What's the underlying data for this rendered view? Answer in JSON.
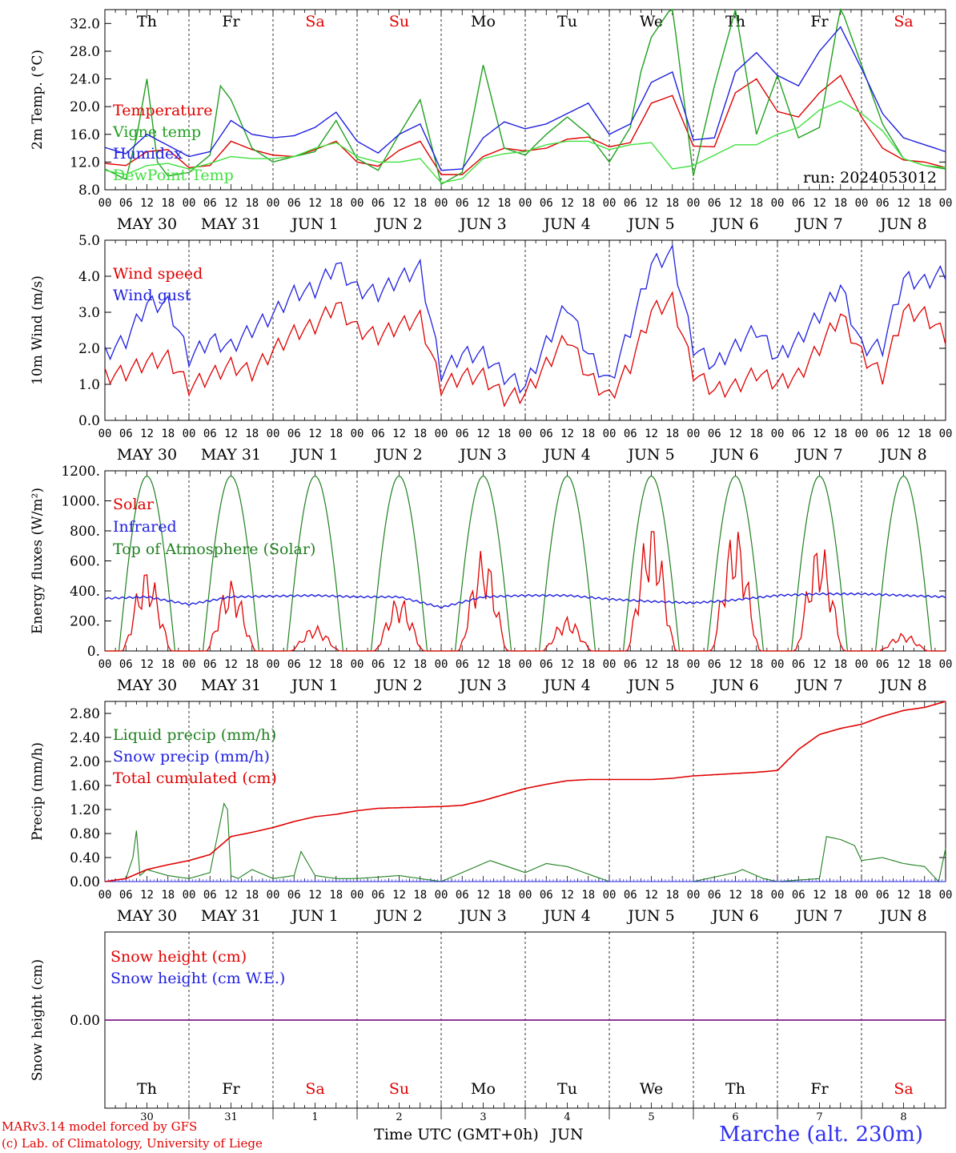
{
  "run_label": "run: 2024053012",
  "days": {
    "weekday_labels": [
      "Th",
      "Fr",
      "Sa",
      "Su",
      "Mo",
      "Tu",
      "We",
      "Th",
      "Fr",
      "Sa"
    ],
    "weekend_color": "#e00000",
    "weekday_color": "#000000",
    "date_labels": [
      "MAY 30",
      "MAY 31",
      "JUN  1",
      "JUN  2",
      "JUN  3",
      "JUN  4",
      "JUN  5",
      "JUN  6",
      "JUN  7",
      "JUN  8"
    ],
    "hour_labels": [
      "00",
      "06",
      "12",
      "18"
    ],
    "final_hour_label": "00",
    "bottom_day_numbers": [
      "30",
      "31",
      "1",
      "2",
      "3",
      "4",
      "5",
      "6",
      "7",
      "8"
    ],
    "bottom_month": "JUN"
  },
  "footer": {
    "credit_line1": "MARv3.14 model forced by GFS",
    "credit_line2": "(c) Lab. of Climatology, University of Liege",
    "time_axis_label": "Time UTC (GMT+0h)",
    "station": "Marche (alt. 230m)"
  },
  "chart_data": [
    {
      "type": "line",
      "ylabel": "2m Temp. (°C)",
      "ylim": [
        8,
        34
      ],
      "yticks": [
        "8.0",
        "12.0",
        "16.0",
        "20.0",
        "24.0",
        "28.0",
        "32.0"
      ],
      "x_unit": "hours since 2024-05-30 00 UTC",
      "series": [
        {
          "name": "Temperature",
          "color": "#e00000",
          "x": [
            0,
            6,
            12,
            18,
            24,
            30,
            36,
            42,
            48,
            54,
            60,
            66,
            72,
            78,
            84,
            90,
            96,
            102,
            108,
            114,
            120,
            126,
            132,
            138,
            144,
            150,
            156,
            162,
            168,
            174,
            180,
            186,
            192,
            198,
            204,
            210,
            216,
            222,
            228,
            234,
            240
          ],
          "values": [
            11.8,
            11.5,
            13.5,
            13.8,
            11.2,
            11.5,
            15.0,
            13.8,
            13.0,
            12.8,
            13.8,
            15.0,
            12.0,
            11.4,
            13.7,
            15.0,
            10.2,
            10.2,
            12.8,
            14.0,
            13.6,
            14.0,
            15.3,
            15.6,
            14.2,
            14.8,
            20.5,
            21.6,
            14.3,
            14.2,
            22.0,
            24.0,
            19.3,
            18.5,
            22.0,
            24.5,
            18.5,
            14.0,
            12.3,
            12.0,
            11.2
          ]
        },
        {
          "name": "Vigne temp",
          "color": "#20a020",
          "x": [
            0,
            6,
            9,
            12,
            15,
            18,
            24,
            30,
            33,
            36,
            42,
            48,
            54,
            60,
            66,
            72,
            78,
            84,
            90,
            96,
            102,
            108,
            114,
            120,
            126,
            132,
            138,
            144,
            150,
            153,
            156,
            162,
            168,
            174,
            180,
            186,
            192,
            198,
            204,
            210,
            216,
            222,
            228,
            234,
            240
          ],
          "values": [
            11.0,
            9.5,
            15.5,
            24.0,
            12.0,
            10.0,
            10.5,
            13.0,
            23.0,
            21.0,
            14.0,
            12.0,
            12.8,
            13.5,
            18.0,
            12.5,
            10.8,
            16.0,
            21.0,
            8.8,
            10.5,
            26.0,
            14.0,
            13.0,
            16.0,
            18.5,
            16.0,
            12.0,
            17.0,
            25.0,
            30.0,
            34.5,
            10.0,
            23.0,
            34.0,
            16.0,
            24.5,
            15.5,
            17.0,
            34.5,
            26.0,
            17.5,
            12.5,
            11.5,
            11.0
          ]
        },
        {
          "name": "Humidex",
          "color": "#2020e0",
          "x": [
            0,
            6,
            12,
            18,
            24,
            30,
            36,
            42,
            48,
            54,
            60,
            66,
            72,
            78,
            84,
            90,
            96,
            102,
            108,
            114,
            120,
            126,
            132,
            138,
            144,
            150,
            156,
            162,
            168,
            174,
            180,
            186,
            192,
            198,
            204,
            210,
            216,
            222,
            228,
            234,
            240
          ],
          "values": [
            14.1,
            13.2,
            16.0,
            14.4,
            12.8,
            13.5,
            18.0,
            16.0,
            15.5,
            15.8,
            17.0,
            19.2,
            15.0,
            13.3,
            16.0,
            17.5,
            10.8,
            11.0,
            15.5,
            17.8,
            16.8,
            17.5,
            19.0,
            20.5,
            16.0,
            17.5,
            23.5,
            25.0,
            15.2,
            15.5,
            25.0,
            27.8,
            24.5,
            23.0,
            28.0,
            31.5,
            25.5,
            19.0,
            15.5,
            14.5,
            13.5
          ]
        },
        {
          "name": "DewPoint Temp",
          "color": "#40e040",
          "x": [
            0,
            6,
            12,
            18,
            24,
            30,
            36,
            42,
            48,
            54,
            60,
            66,
            72,
            78,
            84,
            90,
            96,
            102,
            108,
            114,
            120,
            126,
            132,
            138,
            144,
            150,
            156,
            162,
            168,
            174,
            180,
            186,
            192,
            198,
            204,
            210,
            216,
            222,
            228,
            234,
            240
          ],
          "values": [
            10.8,
            10.2,
            11.5,
            11.8,
            11.0,
            11.8,
            12.8,
            12.5,
            12.5,
            12.8,
            14.0,
            14.8,
            12.8,
            12.0,
            12.0,
            12.5,
            9.0,
            9.6,
            12.5,
            13.2,
            13.5,
            14.5,
            15.0,
            15.0,
            13.8,
            14.5,
            14.8,
            11.0,
            11.5,
            13.0,
            14.5,
            14.5,
            16.0,
            17.0,
            19.5,
            20.8,
            19.0,
            16.5,
            12.5,
            11.5,
            11.2
          ]
        }
      ]
    },
    {
      "type": "line",
      "ylabel": "10m Wind (m/s)",
      "ylim": [
        0,
        5
      ],
      "yticks": [
        "0.0",
        "1.0",
        "2.0",
        "3.0",
        "4.0",
        "5.0"
      ],
      "series": [
        {
          "name": "Wind speed",
          "color": "#e00000",
          "x": [
            0,
            6,
            12,
            18,
            24,
            30,
            36,
            42,
            48,
            54,
            60,
            66,
            72,
            78,
            84,
            90,
            96,
            102,
            108,
            114,
            120,
            126,
            132,
            138,
            144,
            150,
            156,
            162,
            168,
            174,
            180,
            186,
            192,
            198,
            204,
            210,
            216,
            222,
            228,
            234,
            240
          ],
          "values": [
            1.2,
            1.3,
            1.6,
            1.7,
            0.9,
            1.2,
            1.5,
            1.3,
            1.9,
            2.4,
            2.6,
            3.2,
            2.5,
            2.3,
            2.6,
            2.8,
            0.9,
            1.2,
            1.2,
            0.6,
            0.7,
            1.5,
            2.3,
            1.2,
            0.6,
            1.5,
            3.0,
            3.3,
            1.3,
            0.8,
            0.9,
            1.3,
            1.0,
            1.2,
            2.0,
            2.9,
            1.8,
            1.2,
            3.0,
            2.9,
            2.3
          ]
        },
        {
          "name": "Wind gust",
          "color": "#2020e0",
          "x": [
            0,
            6,
            12,
            18,
            24,
            30,
            36,
            42,
            48,
            54,
            60,
            66,
            72,
            78,
            84,
            90,
            96,
            102,
            108,
            114,
            120,
            126,
            132,
            138,
            144,
            150,
            156,
            162,
            168,
            174,
            180,
            186,
            192,
            198,
            204,
            210,
            216,
            222,
            228,
            234,
            240
          ],
          "values": [
            1.8,
            2.2,
            3.2,
            3.2,
            1.7,
            2.2,
            2.0,
            2.5,
            2.9,
            3.5,
            3.6,
            4.3,
            3.6,
            3.5,
            3.9,
            4.2,
            1.3,
            1.8,
            1.8,
            1.2,
            0.9,
            2.1,
            3.2,
            1.8,
            1.0,
            2.5,
            4.3,
            4.6,
            2.0,
            1.5,
            2.0,
            2.5,
            1.7,
            2.2,
            2.9,
            3.7,
            2.0,
            2.0,
            3.9,
            3.8,
            4.1
          ]
        }
      ]
    },
    {
      "type": "line",
      "ylabel": "Energy fluxes (W/m²)",
      "ylim": [
        0,
        1200
      ],
      "yticks": [
        "0.",
        "200.",
        "400.",
        "600.",
        "800.",
        "1000.",
        "1200."
      ],
      "series": [
        {
          "name": "Solar",
          "color": "#e00000",
          "day_peaks": [
            560,
            480,
            170,
            370,
            680,
            230,
            880,
            840,
            740,
            120
          ]
        },
        {
          "name": "Infrared",
          "color": "#2020e0",
          "x": [
            0,
            12,
            24,
            36,
            48,
            60,
            72,
            84,
            96,
            108,
            120,
            132,
            144,
            156,
            168,
            180,
            192,
            204,
            216,
            228,
            240
          ],
          "values": [
            350,
            360,
            310,
            360,
            365,
            370,
            360,
            360,
            290,
            360,
            370,
            370,
            345,
            330,
            320,
            340,
            370,
            380,
            380,
            370,
            360
          ]
        },
        {
          "name": "Top of Atmosphere (Solar)",
          "color": "#208020",
          "peak": 1165,
          "sunrise_utc": 4,
          "sunset_utc": 20
        }
      ]
    },
    {
      "type": "line",
      "ylabel": "Precip (mm/h)",
      "ylim": [
        0,
        3.0
      ],
      "yticks": [
        "0.00",
        "0.40",
        "0.80",
        "1.20",
        "1.60",
        "2.00",
        "2.40",
        "2.80"
      ],
      "series": [
        {
          "name": "Liquid precip (mm/h)",
          "color": "#208020",
          "x": [
            0,
            6,
            8,
            9,
            10,
            12,
            18,
            24,
            30,
            34,
            35,
            36,
            38,
            42,
            48,
            54,
            56,
            60,
            66,
            72,
            84,
            96,
            110,
            120,
            126,
            132,
            144,
            168,
            180,
            182,
            188,
            192,
            204,
            206,
            210,
            214,
            216,
            222,
            228,
            234,
            238,
            240
          ],
          "values": [
            0,
            0.05,
            0.4,
            0.85,
            0.1,
            0.2,
            0.1,
            0.05,
            0.15,
            1.3,
            1.2,
            0.1,
            0.05,
            0.2,
            0.05,
            0.1,
            0.5,
            0.1,
            0.05,
            0.05,
            0.1,
            0,
            0.35,
            0.15,
            0.3,
            0.25,
            0,
            0,
            0.15,
            0.2,
            0.05,
            0,
            0.05,
            0.75,
            0.7,
            0.6,
            0.35,
            0.4,
            0.3,
            0.25,
            0,
            0.55
          ]
        },
        {
          "name": "Snow precip (mm/h)",
          "color": "#2020e0",
          "x": [
            0,
            240
          ],
          "values": [
            0,
            0
          ]
        },
        {
          "name": "Total cumulated (cm)",
          "color": "#e00000",
          "x": [
            0,
            6,
            12,
            18,
            24,
            30,
            36,
            42,
            48,
            54,
            60,
            66,
            72,
            78,
            84,
            90,
            96,
            102,
            108,
            114,
            120,
            126,
            132,
            138,
            144,
            150,
            156,
            162,
            168,
            174,
            180,
            186,
            192,
            198,
            204,
            210,
            216,
            222,
            228,
            234,
            240
          ],
          "values": [
            0,
            0.05,
            0.2,
            0.28,
            0.35,
            0.45,
            0.75,
            0.82,
            0.9,
            1.0,
            1.08,
            1.12,
            1.18,
            1.22,
            1.23,
            1.24,
            1.25,
            1.27,
            1.35,
            1.45,
            1.55,
            1.62,
            1.68,
            1.7,
            1.7,
            1.7,
            1.7,
            1.72,
            1.76,
            1.78,
            1.8,
            1.82,
            1.85,
            2.2,
            2.45,
            2.55,
            2.62,
            2.75,
            2.85,
            2.9,
            3.0
          ]
        }
      ]
    },
    {
      "type": "line",
      "ylabel": "Snow height (cm)",
      "ylim": [
        -1,
        1
      ],
      "yticks": [
        "0.00"
      ],
      "series": [
        {
          "name": "Snow height (cm)",
          "color": "#e00000",
          "x": [
            0,
            240
          ],
          "values": [
            0,
            0
          ]
        },
        {
          "name": "Snow height (cm W.E.)",
          "color": "#2020e0",
          "x": [
            0,
            240
          ],
          "values": [
            0,
            0
          ]
        }
      ]
    }
  ]
}
